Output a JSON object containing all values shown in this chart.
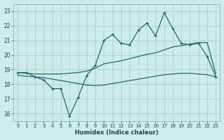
{
  "xlabel": "Humidex (Indice chaleur)",
  "ylabel": "",
  "background_color": "#cdecea",
  "grid_color": "#aed4d2",
  "line_color": "#1e6b6b",
  "xlim": [
    -0.5,
    23.5
  ],
  "ylim": [
    15.5,
    23.5
  ],
  "xticks": [
    0,
    1,
    2,
    3,
    4,
    5,
    6,
    7,
    8,
    9,
    10,
    11,
    12,
    13,
    14,
    15,
    16,
    17,
    18,
    19,
    20,
    21,
    22,
    23
  ],
  "yticks": [
    16,
    17,
    18,
    19,
    20,
    21,
    22,
    23
  ],
  "x": [
    0,
    1,
    2,
    3,
    4,
    5,
    6,
    7,
    8,
    9,
    10,
    11,
    12,
    13,
    14,
    15,
    16,
    17,
    18,
    19,
    20,
    21,
    22,
    23
  ],
  "y_main": [
    18.8,
    18.8,
    18.5,
    18.3,
    17.7,
    17.7,
    15.8,
    17.1,
    18.6,
    19.3,
    21.0,
    21.4,
    20.8,
    20.7,
    21.7,
    22.2,
    21.3,
    22.9,
    21.8,
    20.8,
    20.7,
    20.8,
    19.9,
    18.5
  ],
  "y_upper": [
    18.8,
    18.75,
    18.7,
    18.7,
    18.7,
    18.7,
    18.75,
    18.8,
    18.9,
    19.1,
    19.4,
    19.5,
    19.6,
    19.75,
    19.9,
    20.05,
    20.15,
    20.35,
    20.55,
    20.65,
    20.75,
    20.85,
    20.85,
    18.7
  ],
  "y_lower": [
    18.6,
    18.55,
    18.5,
    18.45,
    18.35,
    18.25,
    18.15,
    18.05,
    17.95,
    17.9,
    17.95,
    18.05,
    18.15,
    18.25,
    18.35,
    18.45,
    18.55,
    18.65,
    18.7,
    18.75,
    18.75,
    18.7,
    18.65,
    18.5
  ]
}
